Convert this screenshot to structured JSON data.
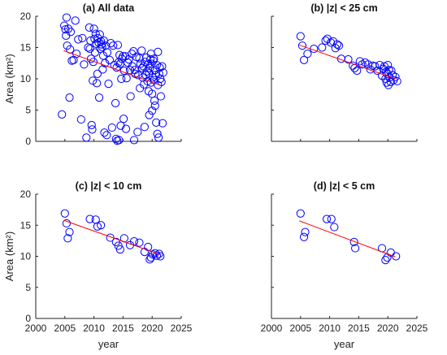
{
  "chart_data": [
    {
      "type": "scatter",
      "title": "(a) All data",
      "xlabel": "",
      "ylabel": "Area (km²)",
      "xlim": [
        2000,
        2025
      ],
      "ylim": [
        0,
        20
      ],
      "xticks": [],
      "yticks": [
        "0",
        "5",
        "10",
        "15",
        "20"
      ],
      "grid": false,
      "colors": {
        "points": "#0000ff",
        "fit": "#ff0000"
      },
      "fit_line": {
        "x": [
          2004.8,
          2021.3
        ],
        "y": [
          14.5,
          9.0
        ]
      },
      "points": [
        [
          2004.5,
          4.3
        ],
        [
          2004.9,
          18.5
        ],
        [
          2005.1,
          17.9
        ],
        [
          2005.2,
          16.9
        ],
        [
          2005.3,
          19.8
        ],
        [
          2005.4,
          15.3
        ],
        [
          2005.6,
          18.0
        ],
        [
          2005.8,
          7.0
        ],
        [
          2005.9,
          14.7
        ],
        [
          2006.0,
          17.5
        ],
        [
          2006.2,
          12.9
        ],
        [
          2006.5,
          13.0
        ],
        [
          2006.8,
          19.3
        ],
        [
          2007.0,
          14.0
        ],
        [
          2007.3,
          16.3
        ],
        [
          2007.8,
          3.5
        ],
        [
          2008.0,
          16.5
        ],
        [
          2008.3,
          12.3
        ],
        [
          2008.7,
          0.6
        ],
        [
          2009.0,
          15.0
        ],
        [
          2009.2,
          18.2
        ],
        [
          2009.3,
          14.8
        ],
        [
          2009.4,
          16.1
        ],
        [
          2009.5,
          13.2
        ],
        [
          2009.6,
          2.6
        ],
        [
          2009.7,
          1.9
        ],
        [
          2009.8,
          9.7
        ],
        [
          2009.9,
          12.7
        ],
        [
          2010.0,
          18.0
        ],
        [
          2010.1,
          16.4
        ],
        [
          2010.2,
          14.2
        ],
        [
          2010.3,
          17.2
        ],
        [
          2010.4,
          15.6
        ],
        [
          2010.5,
          9.3
        ],
        [
          2010.6,
          10.8
        ],
        [
          2010.7,
          16.5
        ],
        [
          2010.8,
          15.8
        ],
        [
          2010.9,
          7.0
        ],
        [
          2011.0,
          17.1
        ],
        [
          2011.1,
          14.8
        ],
        [
          2011.2,
          16.0
        ],
        [
          2011.3,
          15.5
        ],
        [
          2011.4,
          15.1
        ],
        [
          2011.5,
          11.5
        ],
        [
          2011.6,
          13.7
        ],
        [
          2011.7,
          16.1
        ],
        [
          2011.8,
          1.4
        ],
        [
          2011.9,
          12.5
        ],
        [
          2012.0,
          15.3
        ],
        [
          2012.2,
          1.0
        ],
        [
          2012.3,
          14.2
        ],
        [
          2012.5,
          9.2
        ],
        [
          2012.7,
          13.0
        ],
        [
          2012.9,
          15.7
        ],
        [
          2013.1,
          2.2
        ],
        [
          2013.3,
          15.3
        ],
        [
          2013.5,
          12.2
        ],
        [
          2013.7,
          6.1
        ],
        [
          2013.8,
          0.4
        ],
        [
          2013.9,
          11.8
        ],
        [
          2014.0,
          0.1
        ],
        [
          2014.1,
          15.4
        ],
        [
          2014.2,
          12.6
        ],
        [
          2014.3,
          0.2
        ],
        [
          2014.4,
          13.8
        ],
        [
          2014.5,
          12.4
        ],
        [
          2014.6,
          2.5
        ],
        [
          2014.7,
          10.0
        ],
        [
          2014.8,
          13.2
        ],
        [
          2015.0,
          13.6
        ],
        [
          2015.1,
          3.6
        ],
        [
          2015.2,
          11.3
        ],
        [
          2015.4,
          13.6
        ],
        [
          2015.5,
          2.0
        ],
        [
          2015.6,
          10.1
        ],
        [
          2015.8,
          12.6
        ],
        [
          2016.0,
          13.1
        ],
        [
          2016.2,
          11.4
        ],
        [
          2016.3,
          7.2
        ],
        [
          2016.5,
          14.0
        ],
        [
          2016.6,
          12.0
        ],
        [
          2016.8,
          14.4
        ],
        [
          2016.9,
          0.2
        ],
        [
          2017.0,
          11.4
        ],
        [
          2017.1,
          10.8
        ],
        [
          2017.3,
          13.5
        ],
        [
          2017.5,
          1.5
        ],
        [
          2017.6,
          10.6
        ],
        [
          2017.8,
          13.3
        ],
        [
          2017.9,
          8.5
        ],
        [
          2018.0,
          12.4
        ],
        [
          2018.2,
          14.5
        ],
        [
          2018.3,
          11.7
        ],
        [
          2018.4,
          10.2
        ],
        [
          2018.5,
          12.0
        ],
        [
          2018.6,
          9.1
        ],
        [
          2018.7,
          2.3
        ],
        [
          2018.8,
          12.7
        ],
        [
          2018.9,
          10.6
        ],
        [
          2019.0,
          13.4
        ],
        [
          2019.1,
          11.2
        ],
        [
          2019.2,
          9.6
        ],
        [
          2019.3,
          12.3
        ],
        [
          2019.4,
          8.0
        ],
        [
          2019.5,
          10.9
        ],
        [
          2019.6,
          11.7
        ],
        [
          2019.7,
          13.1
        ],
        [
          2019.8,
          9.4
        ],
        [
          2019.9,
          12.4
        ],
        [
          2020.0,
          7.6
        ],
        [
          2020.1,
          10.2
        ],
        [
          2020.2,
          12.9
        ],
        [
          2020.3,
          9.8
        ],
        [
          2020.4,
          6.5
        ],
        [
          2020.5,
          11.4
        ],
        [
          2020.6,
          10.6
        ],
        [
          2020.7,
          3.0
        ],
        [
          2020.8,
          12.2
        ],
        [
          2020.9,
          1.2
        ],
        [
          2021.0,
          9.0
        ],
        [
          2021.1,
          0.6
        ],
        [
          2021.2,
          10.8
        ],
        [
          2021.3,
          11.8
        ],
        [
          2021.4,
          10.0
        ],
        [
          2021.5,
          7.2
        ],
        [
          2021.6,
          9.5
        ],
        [
          2021.7,
          12.0
        ],
        [
          2021.8,
          2.9
        ],
        [
          2021.9,
          11.0
        ],
        [
          2019.5,
          4.2
        ],
        [
          2020.0,
          4.9
        ],
        [
          2020.5,
          5.7
        ],
        [
          2020.3,
          13.2
        ],
        [
          2019.8,
          14.0
        ],
        [
          2021.0,
          14.3
        ]
      ]
    },
    {
      "type": "scatter",
      "title": "(b) |z| < 25 cm",
      "xlabel": "",
      "ylabel": "",
      "xlim": [
        2000,
        2025
      ],
      "ylim": [
        0,
        20
      ],
      "xticks": [],
      "yticks": [],
      "grid": false,
      "colors": {
        "points": "#0000ff",
        "fit": "#ff0000"
      },
      "fit_line": {
        "x": [
          2004.8,
          2021.3
        ],
        "y": [
          15.4,
          10.0
        ]
      },
      "points": [
        [
          2005.0,
          16.8
        ],
        [
          2005.3,
          15.3
        ],
        [
          2005.6,
          13.0
        ],
        [
          2006.2,
          14.0
        ],
        [
          2007.3,
          14.8
        ],
        [
          2008.7,
          15.0
        ],
        [
          2009.3,
          16.1
        ],
        [
          2009.6,
          16.4
        ],
        [
          2010.2,
          15.8
        ],
        [
          2010.6,
          16.0
        ],
        [
          2011.0,
          14.9
        ],
        [
          2011.3,
          15.5
        ],
        [
          2011.6,
          15.3
        ],
        [
          2012.0,
          13.2
        ],
        [
          2013.2,
          13.1
        ],
        [
          2014.0,
          12.1
        ],
        [
          2014.3,
          11.7
        ],
        [
          2014.7,
          11.3
        ],
        [
          2015.2,
          12.8
        ],
        [
          2015.6,
          12.3
        ],
        [
          2016.1,
          12.6
        ],
        [
          2016.6,
          12.3
        ],
        [
          2017.0,
          11.5
        ],
        [
          2017.4,
          12.1
        ],
        [
          2017.8,
          12.0
        ],
        [
          2018.2,
          11.3
        ],
        [
          2018.6,
          12.2
        ],
        [
          2019.0,
          10.5
        ],
        [
          2019.2,
          11.6
        ],
        [
          2019.4,
          12.0
        ],
        [
          2019.6,
          10.0
        ],
        [
          2019.7,
          11.1
        ],
        [
          2019.8,
          9.4
        ],
        [
          2019.9,
          10.8
        ],
        [
          2020.0,
          12.2
        ],
        [
          2020.1,
          9.0
        ],
        [
          2020.2,
          11.4
        ],
        [
          2020.3,
          10.2
        ],
        [
          2020.5,
          9.5
        ],
        [
          2020.6,
          11.3
        ],
        [
          2020.8,
          10.6
        ],
        [
          2021.0,
          9.8
        ],
        [
          2021.3,
          10.3
        ],
        [
          2021.6,
          9.6
        ]
      ]
    },
    {
      "type": "scatter",
      "title": "(c) |z| < 10 cm",
      "xlabel": "year",
      "ylabel": "Area (km²)",
      "xlim": [
        2000,
        2025
      ],
      "ylim": [
        0,
        20
      ],
      "xticks": [
        "2000",
        "2005",
        "2010",
        "2015",
        "2020",
        "2025"
      ],
      "yticks": [
        "0",
        "5",
        "10",
        "15",
        "20"
      ],
      "grid": false,
      "colors": {
        "points": "#0000ff",
        "fit": "#ff0000"
      },
      "fit_line": {
        "x": [
          2004.8,
          2021.3
        ],
        "y": [
          15.8,
          10.3
        ]
      },
      "points": [
        [
          2005.0,
          16.9
        ],
        [
          2005.3,
          15.3
        ],
        [
          2005.5,
          12.9
        ],
        [
          2005.8,
          13.9
        ],
        [
          2009.3,
          16.0
        ],
        [
          2010.3,
          15.9
        ],
        [
          2010.6,
          14.8
        ],
        [
          2011.2,
          15.0
        ],
        [
          2012.8,
          13.0
        ],
        [
          2013.8,
          12.3
        ],
        [
          2014.2,
          11.7
        ],
        [
          2014.5,
          11.1
        ],
        [
          2015.2,
          12.9
        ],
        [
          2016.2,
          11.8
        ],
        [
          2016.9,
          12.4
        ],
        [
          2017.8,
          12.2
        ],
        [
          2018.7,
          10.7
        ],
        [
          2019.3,
          11.5
        ],
        [
          2019.6,
          9.5
        ],
        [
          2019.8,
          9.8
        ],
        [
          2020.1,
          10.3
        ],
        [
          2020.5,
          10.5
        ],
        [
          2020.8,
          10.1
        ],
        [
          2021.2,
          10.4
        ],
        [
          2021.4,
          10.0
        ]
      ]
    },
    {
      "type": "scatter",
      "title": "(d) |z| < 5 cm",
      "xlabel": "year",
      "ylabel": "",
      "xlim": [
        2000,
        2025
      ],
      "ylim": [
        0,
        20
      ],
      "xticks": [
        "2000",
        "2005",
        "2010",
        "2015",
        "2020",
        "2025"
      ],
      "yticks": [],
      "grid": false,
      "colors": {
        "points": "#0000ff",
        "fit": "#ff0000"
      },
      "fit_line": {
        "x": [
          2004.8,
          2021.3
        ],
        "y": [
          15.7,
          9.9
        ]
      },
      "points": [
        [
          2005.0,
          16.9
        ],
        [
          2005.6,
          13.1
        ],
        [
          2005.8,
          13.9
        ],
        [
          2009.5,
          16.0
        ],
        [
          2010.3,
          16.0
        ],
        [
          2010.8,
          14.7
        ],
        [
          2014.2,
          12.3
        ],
        [
          2014.4,
          11.3
        ],
        [
          2019.0,
          11.3
        ],
        [
          2019.6,
          9.4
        ],
        [
          2019.9,
          9.8
        ],
        [
          2020.5,
          10.6
        ],
        [
          2021.4,
          10.0
        ]
      ]
    }
  ]
}
